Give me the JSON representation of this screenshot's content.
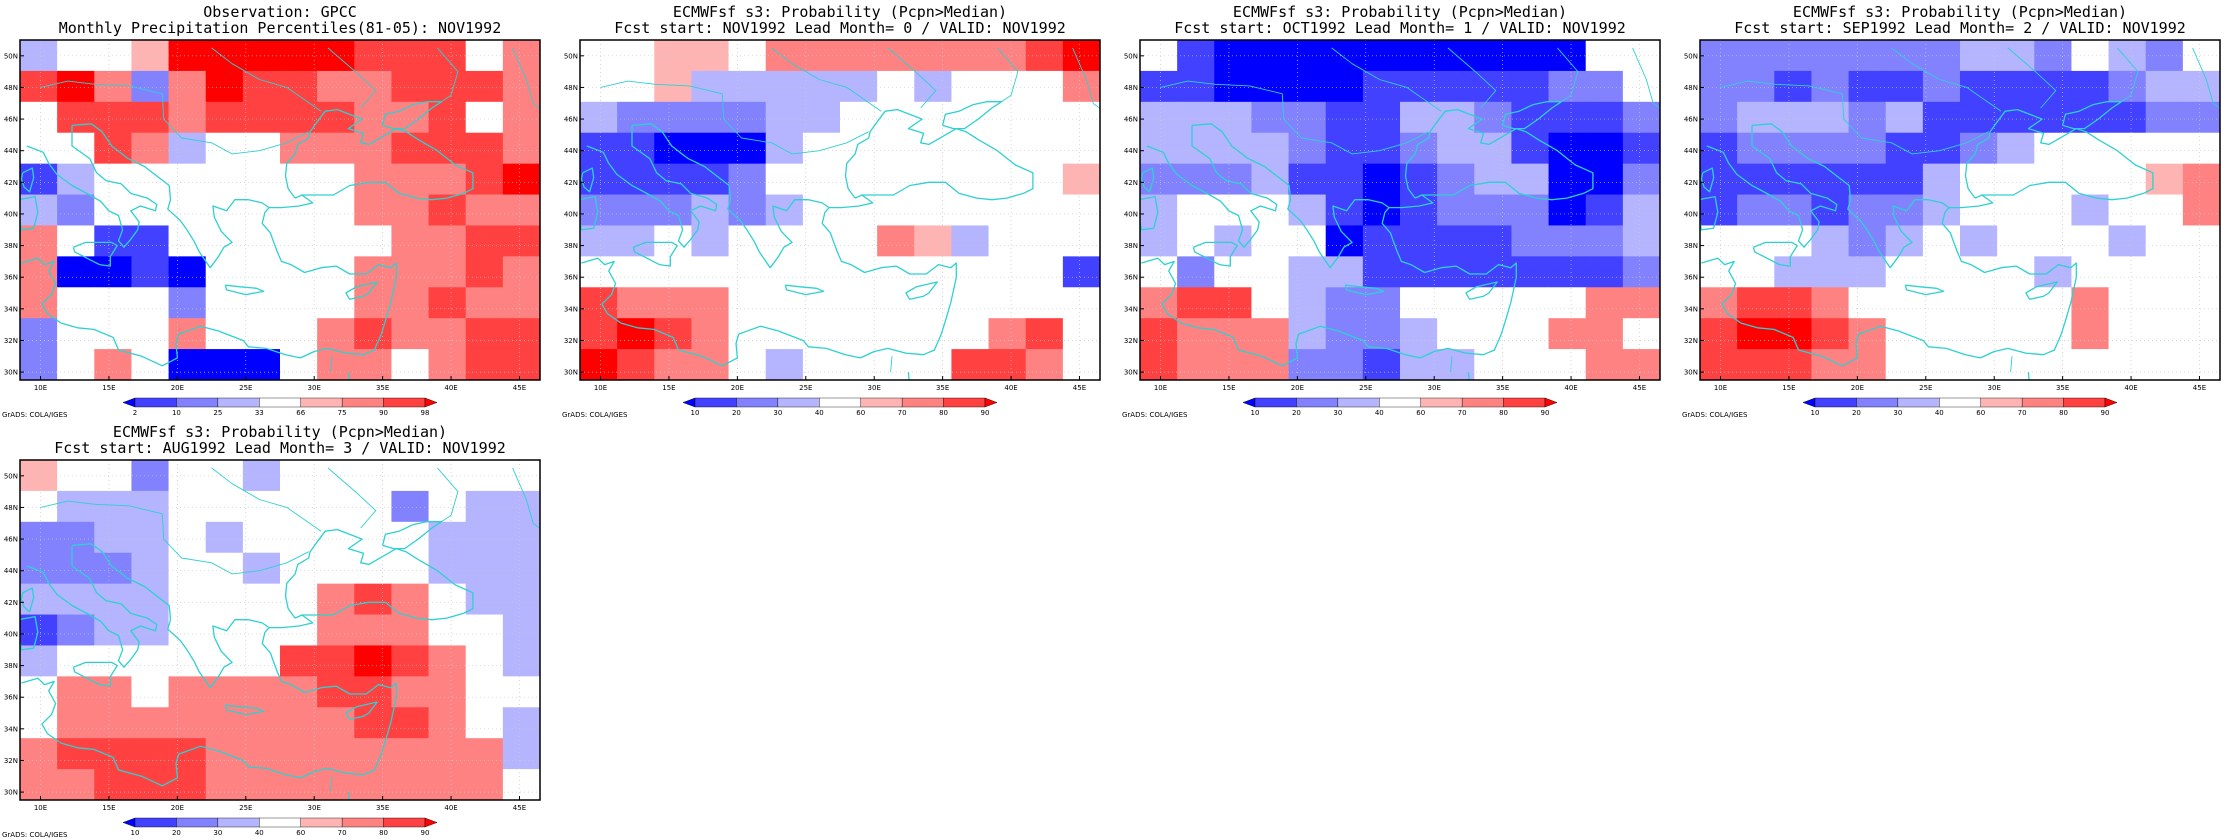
{
  "panels": [
    {
      "title1": "Observation: GPCC",
      "title2": "Monthly Precipitation Percentiles(81-05): NOV1992",
      "colorbar": {
        "labels": [
          "2",
          "10",
          "25",
          "33",
          "66",
          "75",
          "90",
          "98"
        ],
        "colors": [
          "#0000ff",
          "#4141ff",
          "#8282ff",
          "#b4b4ff",
          "#ffffff",
          "#ffb4b4",
          "#ff8282",
          "#ff4141",
          "#ff0000"
        ]
      },
      "grid": [
        [
          3,
          4,
          4,
          5,
          8,
          8,
          8,
          8,
          8,
          7,
          7,
          7,
          4,
          6
        ],
        [
          7,
          8,
          6,
          2,
          6,
          8,
          7,
          7,
          6,
          6,
          7,
          7,
          7,
          6
        ],
        [
          4,
          7,
          7,
          7,
          6,
          7,
          7,
          7,
          7,
          6,
          6,
          7,
          4,
          6
        ],
        [
          4,
          4,
          7,
          6,
          3,
          4,
          4,
          6,
          6,
          6,
          7,
          7,
          7,
          6
        ],
        [
          1,
          3,
          4,
          4,
          4,
          4,
          4,
          4,
          4,
          6,
          6,
          6,
          7,
          8
        ],
        [
          3,
          2,
          4,
          4,
          4,
          4,
          4,
          4,
          4,
          6,
          6,
          7,
          6,
          6
        ],
        [
          6,
          4,
          1,
          1,
          4,
          4,
          4,
          4,
          4,
          4,
          6,
          6,
          7,
          7
        ],
        [
          6,
          0,
          0,
          1,
          0,
          4,
          4,
          4,
          4,
          6,
          6,
          6,
          7,
          6
        ],
        [
          6,
          4,
          4,
          4,
          2,
          4,
          4,
          4,
          4,
          6,
          6,
          7,
          6,
          6
        ],
        [
          2,
          4,
          4,
          4,
          6,
          4,
          4,
          4,
          6,
          7,
          6,
          6,
          7,
          7
        ],
        [
          2,
          4,
          6,
          4,
          0,
          0,
          0,
          4,
          6,
          6,
          4,
          6,
          7,
          7
        ]
      ]
    },
    {
      "title1": "ECMWFsf s3: Probability (Pcpn>Median)",
      "title2": "Fcst start: NOV1992  Lead Month= 0 / VALID: NOV1992",
      "colorbar": {
        "labels": [
          "10",
          "20",
          "30",
          "40",
          "60",
          "70",
          "80",
          "90"
        ],
        "colors": [
          "#0000ff",
          "#4141ff",
          "#8282ff",
          "#b4b4ff",
          "#ffffff",
          "#ffb4b4",
          "#ff8282",
          "#ff4141",
          "#ff0000"
        ]
      },
      "grid": [
        [
          4,
          4,
          5,
          5,
          4,
          6,
          6,
          6,
          6,
          6,
          6,
          6,
          7,
          8
        ],
        [
          4,
          4,
          5,
          3,
          3,
          3,
          3,
          3,
          4,
          3,
          4,
          4,
          4,
          6
        ],
        [
          3,
          2,
          2,
          2,
          2,
          3,
          3,
          4,
          4,
          4,
          4,
          4,
          4,
          4
        ],
        [
          1,
          1,
          0,
          0,
          0,
          3,
          4,
          4,
          4,
          4,
          4,
          4,
          4,
          4
        ],
        [
          1,
          1,
          1,
          1,
          2,
          4,
          4,
          4,
          4,
          4,
          4,
          4,
          4,
          5
        ],
        [
          2,
          2,
          2,
          3,
          2,
          3,
          4,
          4,
          4,
          4,
          4,
          4,
          4,
          4
        ],
        [
          3,
          3,
          4,
          3,
          4,
          4,
          4,
          4,
          6,
          5,
          3,
          4,
          4,
          4
        ],
        [
          4,
          4,
          4,
          4,
          4,
          4,
          4,
          4,
          4,
          4,
          4,
          4,
          4,
          1
        ],
        [
          7,
          6,
          6,
          6,
          4,
          4,
          4,
          4,
          4,
          4,
          4,
          4,
          4,
          4
        ],
        [
          7,
          8,
          7,
          6,
          4,
          4,
          4,
          4,
          4,
          4,
          4,
          6,
          7,
          4
        ],
        [
          8,
          7,
          6,
          6,
          4,
          3,
          4,
          4,
          4,
          4,
          7,
          7,
          6,
          4
        ]
      ]
    },
    {
      "title1": "ECMWFsf s3: Probability (Pcpn>Median)",
      "title2": "Fcst start: OCT1992  Lead Month= 1 / VALID: NOV1992",
      "colorbar": {
        "labels": [
          "10",
          "20",
          "30",
          "40",
          "60",
          "70",
          "80",
          "90"
        ],
        "colors": [
          "#0000ff",
          "#4141ff",
          "#8282ff",
          "#b4b4ff",
          "#ffffff",
          "#ffb4b4",
          "#ff8282",
          "#ff4141",
          "#ff0000"
        ]
      },
      "grid": [
        [
          4,
          1,
          0,
          0,
          0,
          0,
          0,
          0,
          0,
          0,
          0,
          0,
          4,
          4
        ],
        [
          1,
          1,
          0,
          0,
          0,
          0,
          1,
          1,
          1,
          1,
          1,
          2,
          2,
          4
        ],
        [
          3,
          3,
          3,
          2,
          2,
          1,
          1,
          3,
          3,
          2,
          1,
          1,
          1,
          2
        ],
        [
          3,
          3,
          3,
          3,
          2,
          1,
          1,
          2,
          3,
          3,
          1,
          0,
          0,
          1
        ],
        [
          2,
          2,
          2,
          3,
          1,
          1,
          0,
          1,
          2,
          3,
          3,
          0,
          0,
          2
        ],
        [
          3,
          4,
          4,
          4,
          3,
          1,
          0,
          1,
          2,
          2,
          2,
          0,
          1,
          3
        ],
        [
          3,
          4,
          3,
          4,
          4,
          0,
          1,
          1,
          1,
          1,
          2,
          2,
          2,
          3
        ],
        [
          4,
          2,
          4,
          4,
          3,
          3,
          1,
          1,
          1,
          1,
          1,
          1,
          1,
          2
        ],
        [
          6,
          7,
          7,
          4,
          3,
          2,
          2,
          4,
          4,
          4,
          4,
          4,
          6,
          6
        ],
        [
          7,
          6,
          6,
          6,
          3,
          2,
          2,
          3,
          4,
          4,
          4,
          6,
          6,
          4
        ],
        [
          7,
          6,
          6,
          6,
          2,
          2,
          1,
          3,
          3,
          4,
          4,
          4,
          6,
          6
        ]
      ]
    },
    {
      "title1": "ECMWFsf s3: Probability (Pcpn>Median)",
      "title2": "Fcst start: SEP1992  Lead Month= 2 / VALID: NOV1992",
      "colorbar": {
        "labels": [
          "10",
          "20",
          "30",
          "40",
          "60",
          "70",
          "80",
          "90"
        ],
        "colors": [
          "#0000ff",
          "#4141ff",
          "#8282ff",
          "#b4b4ff",
          "#ffffff",
          "#ffb4b4",
          "#ff8282",
          "#ff4141",
          "#ff0000"
        ]
      },
      "grid": [
        [
          2,
          2,
          2,
          2,
          2,
          2,
          2,
          3,
          3,
          2,
          4,
          3,
          2,
          4
        ],
        [
          2,
          2,
          1,
          2,
          1,
          1,
          2,
          1,
          1,
          1,
          1,
          2,
          3,
          3
        ],
        [
          2,
          3,
          3,
          3,
          2,
          3,
          1,
          1,
          1,
          1,
          1,
          1,
          2,
          2
        ],
        [
          1,
          2,
          2,
          2,
          2,
          1,
          1,
          2,
          3,
          4,
          4,
          4,
          4,
          4
        ],
        [
          1,
          1,
          1,
          1,
          1,
          1,
          3,
          4,
          4,
          4,
          4,
          4,
          5,
          6
        ],
        [
          1,
          2,
          2,
          1,
          2,
          2,
          3,
          4,
          4,
          4,
          3,
          4,
          4,
          6
        ],
        [
          4,
          4,
          4,
          3,
          2,
          3,
          4,
          3,
          4,
          4,
          4,
          3,
          4,
          4
        ],
        [
          4,
          4,
          3,
          3,
          3,
          4,
          4,
          4,
          4,
          3,
          4,
          4,
          4,
          4
        ],
        [
          6,
          7,
          7,
          6,
          4,
          4,
          4,
          4,
          4,
          4,
          6,
          4,
          4,
          4
        ],
        [
          7,
          8,
          8,
          7,
          6,
          4,
          4,
          4,
          4,
          4,
          6,
          4,
          4,
          4
        ],
        [
          7,
          7,
          7,
          6,
          6,
          4,
          4,
          4,
          4,
          4,
          4,
          4,
          4,
          4
        ]
      ]
    },
    {
      "title1": "ECMWFsf s3: Probability (Pcpn>Median)",
      "title2": "Fcst start: AUG1992  Lead Month= 3 / VALID: NOV1992",
      "colorbar": {
        "labels": [
          "10",
          "20",
          "30",
          "40",
          "60",
          "70",
          "80",
          "90"
        ],
        "colors": [
          "#0000ff",
          "#4141ff",
          "#8282ff",
          "#b4b4ff",
          "#ffffff",
          "#ffb4b4",
          "#ff8282",
          "#ff4141",
          "#ff0000"
        ]
      },
      "grid": [
        [
          5,
          4,
          4,
          2,
          4,
          4,
          3,
          4,
          4,
          4,
          4,
          4,
          4,
          4
        ],
        [
          4,
          3,
          3,
          3,
          4,
          4,
          4,
          4,
          4,
          4,
          2,
          4,
          3,
          3
        ],
        [
          2,
          2,
          3,
          3,
          4,
          3,
          4,
          4,
          4,
          4,
          4,
          3,
          3,
          3
        ],
        [
          2,
          2,
          2,
          3,
          4,
          4,
          3,
          4,
          4,
          4,
          4,
          3,
          3,
          3
        ],
        [
          3,
          3,
          3,
          3,
          4,
          4,
          4,
          4,
          6,
          7,
          6,
          4,
          3,
          3
        ],
        [
          1,
          2,
          3,
          3,
          4,
          4,
          4,
          4,
          6,
          6,
          6,
          4,
          4,
          3
        ],
        [
          3,
          4,
          4,
          4,
          4,
          4,
          4,
          7,
          7,
          8,
          7,
          6,
          4,
          3
        ],
        [
          4,
          6,
          6,
          4,
          6,
          6,
          6,
          6,
          7,
          7,
          6,
          6,
          4,
          4
        ],
        [
          4,
          6,
          6,
          6,
          6,
          6,
          6,
          6,
          6,
          7,
          7,
          6,
          4,
          3
        ],
        [
          6,
          7,
          7,
          7,
          7,
          6,
          6,
          6,
          6,
          6,
          6,
          6,
          6,
          3
        ],
        [
          6,
          6,
          7,
          7,
          7,
          6,
          6,
          6,
          6,
          6,
          6,
          6,
          6,
          4
        ]
      ]
    }
  ],
  "axes": {
    "lat_labels": [
      "50N",
      "48N",
      "46N",
      "44N",
      "42N",
      "40N",
      "38N",
      "36N",
      "34N",
      "32N",
      "30N"
    ],
    "lon_labels": [
      "10E",
      "15E",
      "20E",
      "25E",
      "30E",
      "35E",
      "40E",
      "45E"
    ]
  },
  "credit": "GrADS: COLA/IGES",
  "colors": {
    "coastline": "#2fd0d0",
    "gridline": "#c8c8c8"
  }
}
